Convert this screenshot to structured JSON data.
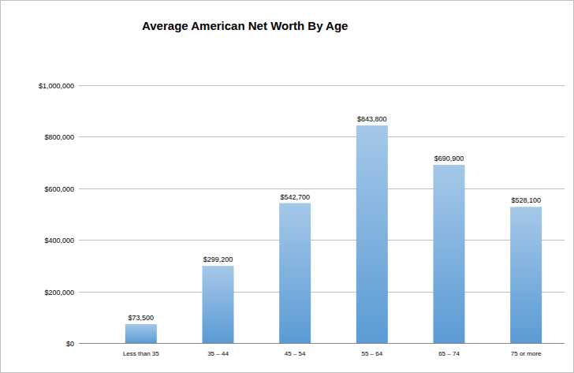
{
  "chart_data": {
    "type": "bar",
    "title": "Average American Net Worth By Age",
    "categories": [
      "Less than 35",
      "35 – 44",
      "45 – 54",
      "55 – 64",
      "65 – 74",
      "75 or more"
    ],
    "values": [
      73500,
      299200,
      542700,
      843800,
      690900,
      528100
    ],
    "value_labels": [
      "$73,500",
      "$299,200",
      "$542,700",
      "$843,800",
      "$690,900",
      "$528,100"
    ],
    "color": "#5b9bd5",
    "ylim": [
      0,
      1000000
    ],
    "yticks": [
      {
        "value": 0,
        "label": "$0"
      },
      {
        "value": 200000,
        "label": "$200,000"
      },
      {
        "value": 400000,
        "label": "$400,000"
      },
      {
        "value": 600000,
        "label": "$600,000"
      },
      {
        "value": 800000,
        "label": "$800,000"
      },
      {
        "value": 1000000,
        "label": "$1,000,000"
      }
    ],
    "grid": true,
    "data_labels": true
  }
}
